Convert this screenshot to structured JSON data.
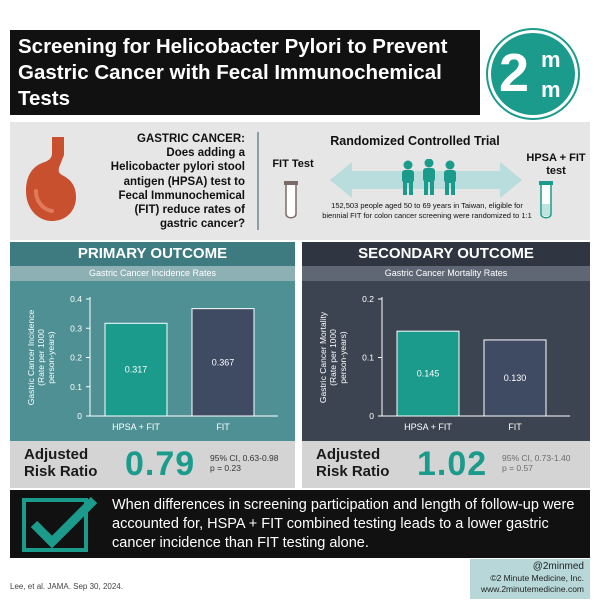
{
  "header": {
    "title": "Screening for Helicobacter Pylori to Prevent Gastric Cancer with Fecal Immunochemical Tests",
    "logo_main": "2",
    "logo_sup": "m",
    "logo_sub": "m"
  },
  "intro": {
    "question_heading": "GASTRIC CANCER:",
    "question_body": "Does adding a Helicobacter pylori stool antigen (HPSA) test to Fecal Immunochemical (FIT) reduce rates of gastric cancer?",
    "rct_title": "Randomized Controlled Trial",
    "left_arm": "FIT Test",
    "right_arm": "HPSA + FIT test",
    "description": "152,503 people aged 50 to 69 years in Taiwan, eligible for biennial FIT for colon cancer screening were randomized to 1:1"
  },
  "primary": {
    "heading": "PRIMARY OUTCOME",
    "subheading": "Gastric Cancer Incidence Rates",
    "rr_label_1": "Adjusted",
    "rr_label_2": "Risk Ratio",
    "rr_value": "0.79",
    "ci": "95% CI, 0.63-0.98",
    "p": "p = 0.23"
  },
  "secondary": {
    "heading": "SECONDARY OUTCOME",
    "subheading": "Gastric Cancer Mortality Rates",
    "rr_label_1": "Adjusted",
    "rr_label_2": "Risk Ratio",
    "rr_value": "1.02",
    "ci": "95% CI, 0.73-1.40",
    "p": "p = 0.57"
  },
  "chart_data": [
    {
      "type": "bar",
      "categories": [
        "HPSA + FIT",
        "FIT"
      ],
      "values": [
        0.317,
        0.367
      ],
      "value_labels": [
        "0.317",
        "0.367"
      ],
      "ylabel": "Gastric Cancer Incidence (Rate per 1000 person-years)",
      "yticks": [
        "0",
        "0.1",
        "0.2",
        "0.3",
        "0.4"
      ],
      "ylim": [
        0,
        0.4
      ],
      "colors": [
        "#1a9b8c",
        "#3f4a63"
      ]
    },
    {
      "type": "bar",
      "categories": [
        "HPSA + FIT",
        "FIT"
      ],
      "values": [
        0.145,
        0.13
      ],
      "value_labels": [
        "0.145",
        "0.130"
      ],
      "ylabel": "Gastric Cancer Mortality (Rate per 1000 person-years)",
      "yticks": [
        "0",
        "0.1",
        "0.2"
      ],
      "ylim": [
        0,
        0.2
      ],
      "colors": [
        "#1a9b8c",
        "#3f4a63"
      ]
    }
  ],
  "conclusion": {
    "text": "When differences in screening participation and length of follow-up were accounted for, HSPA + FIT combined testing leads to a lower gastric cancer incidence than FIT testing alone."
  },
  "footer": {
    "citation": "Lee, et al. JAMA. Sep 30, 2024.",
    "handle": "@2minmed",
    "copyright": "©2 Minute Medicine, Inc.",
    "website": "www.2minutemedicine.com"
  }
}
